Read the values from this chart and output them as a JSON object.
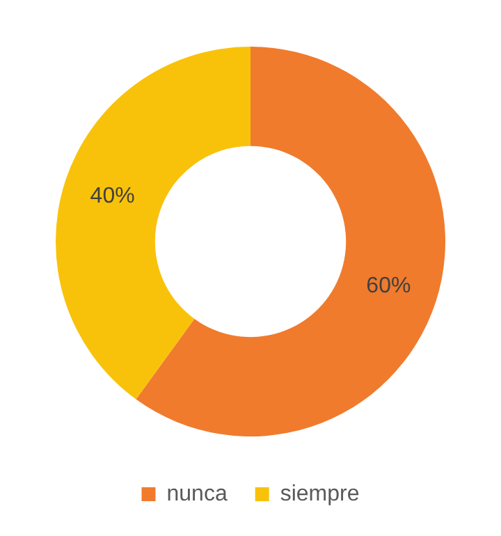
{
  "chart_data": {
    "type": "donut",
    "categories": [
      "nunca",
      "siempre"
    ],
    "values": [
      60,
      40
    ],
    "colors": [
      "#f07b2c",
      "#f9c20a"
    ],
    "value_labels": [
      "60%",
      "40%"
    ],
    "legend": "bottom"
  }
}
